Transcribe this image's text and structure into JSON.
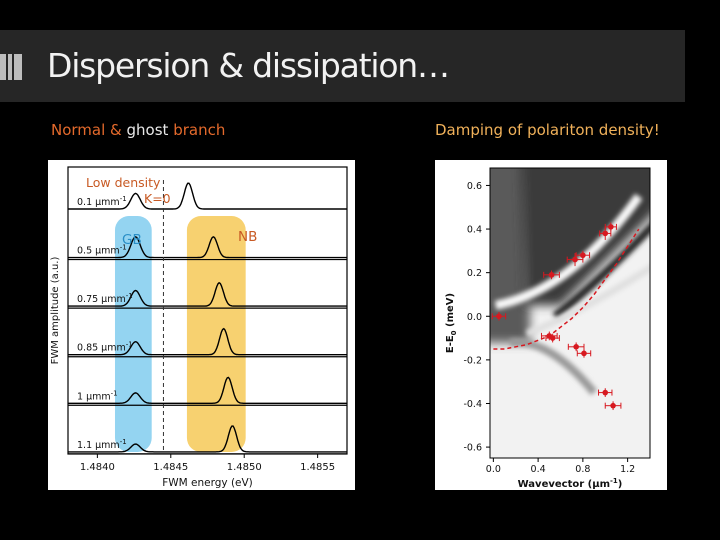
{
  "slide": {
    "title": "Dispersion & dissipation…",
    "subtitle_left": {
      "part1": "Normal & ",
      "part2": "ghost",
      "part3": " branch"
    },
    "subtitle_right": "Damping of polariton density!"
  },
  "colors": {
    "title_bar": "#262626",
    "accent_orange": "#e46a2c",
    "accent_gold": "#f0b15a",
    "gb_band": "#8ed2f0",
    "nb_band": "#f7cf68",
    "data_red": "#d71920"
  },
  "icons": [
    "title-bars-icon"
  ],
  "chart_data": [
    {
      "type": "line",
      "xlabel": "FWM energy (eV)",
      "ylabel": "FWM amplitude (a.u.)",
      "x_ticks": [
        "1.4840",
        "1.4845",
        "1.4850",
        "1.4855"
      ],
      "xlim": [
        1.4838,
        1.4857
      ],
      "traces": [
        {
          "label": "0.1",
          "gb_peak": 0.6,
          "nb_peak": 1.0,
          "nb_x": 1.48462
        },
        {
          "label": "0.5",
          "gb_peak": 0.8,
          "nb_peak": 0.8,
          "nb_x": 1.48479
        },
        {
          "label": "0.75",
          "gb_peak": 0.6,
          "nb_peak": 0.9,
          "nb_x": 1.48483
        },
        {
          "label": "0.85",
          "gb_peak": 0.5,
          "nb_peak": 1.0,
          "nb_x": 1.48486
        },
        {
          "label": "1",
          "gb_peak": 0.4,
          "nb_peak": 1.0,
          "nb_x": 1.48489
        },
        {
          "label": "1.1",
          "gb_peak": 0.3,
          "nb_peak": 1.0,
          "nb_x": 1.48492
        }
      ],
      "trace_unit": "μm",
      "trace_unit_exp": "-1",
      "annotations": {
        "low_density": "Low density",
        "k_zero": "K=0",
        "gb": "GB",
        "nb": "NB"
      },
      "dashed_line_x": 1.48445,
      "bands": [
        {
          "name": "GB",
          "x_from": 1.48412,
          "x_to": 1.48437
        },
        {
          "name": "NB",
          "x_from": 1.48461,
          "x_to": 1.48501
        }
      ]
    },
    {
      "type": "heatmap",
      "xlabel": "Wavevector (μm",
      "xlabel_exp": "-1",
      "xlabel_close": ")",
      "ylabel": "E-E",
      "ylabel_sub": "0",
      "ylabel_unit": " (meV)",
      "x_ticks": [
        "0.0",
        "0.4",
        "0.8",
        "1.2"
      ],
      "y_ticks": [
        "0.6",
        "0.4",
        "0.2",
        "0.0",
        "-0.2",
        "-0.4",
        "-0.6"
      ],
      "xlim": [
        -0.03,
        1.4
      ],
      "ylim": [
        -0.65,
        0.68
      ],
      "points": [
        {
          "x": 0.05,
          "y": 0.0,
          "xerr": 0.06,
          "yerr": 0.02
        },
        {
          "x": 0.52,
          "y": 0.19,
          "xerr": 0.07,
          "yerr": 0.02
        },
        {
          "x": 0.73,
          "y": 0.26,
          "xerr": 0.07,
          "yerr": 0.03
        },
        {
          "x": 0.8,
          "y": 0.28,
          "xerr": 0.06,
          "yerr": 0.02
        },
        {
          "x": 1.0,
          "y": 0.38,
          "xerr": 0.05,
          "yerr": 0.03
        },
        {
          "x": 1.05,
          "y": 0.41,
          "xerr": 0.05,
          "yerr": 0.02
        },
        {
          "x": 0.5,
          "y": -0.09,
          "xerr": 0.07,
          "yerr": 0.02
        },
        {
          "x": 0.53,
          "y": -0.1,
          "xerr": 0.06,
          "yerr": 0.02
        },
        {
          "x": 0.74,
          "y": -0.14,
          "xerr": 0.07,
          "yerr": 0.02
        },
        {
          "x": 0.81,
          "y": -0.17,
          "xerr": 0.06,
          "yerr": 0.02
        },
        {
          "x": 1.0,
          "y": -0.35,
          "xerr": 0.06,
          "yerr": 0.02
        },
        {
          "x": 1.07,
          "y": -0.41,
          "xerr": 0.07,
          "yerr": 0.02
        }
      ],
      "fit_curve": {
        "x": [
          0.0,
          0.1,
          0.2,
          0.3,
          0.4,
          0.5,
          0.6,
          0.7,
          0.8,
          0.9,
          1.0,
          1.1,
          1.2,
          1.3
        ],
        "y": [
          -0.15,
          -0.15,
          -0.14,
          -0.13,
          -0.11,
          -0.09,
          -0.05,
          -0.01,
          0.04,
          0.1,
          0.17,
          0.24,
          0.32,
          0.4
        ]
      }
    }
  ]
}
